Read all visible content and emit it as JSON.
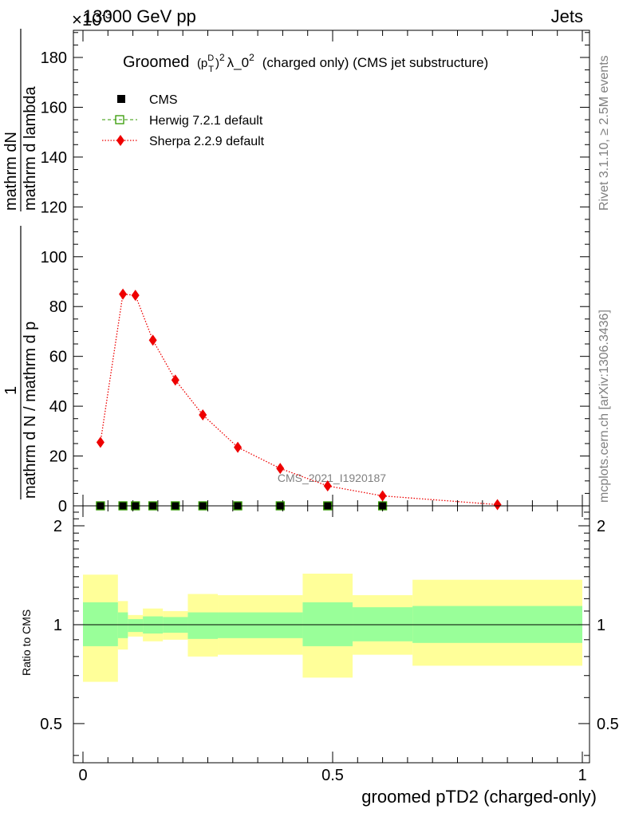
{
  "header": {
    "exponent_prefix": "×10",
    "exponent_sup": "-3",
    "energy_label": "13000 GeV pp",
    "category_label": "Jets"
  },
  "plot_title": {
    "main": "Groomed",
    "sub_sup": "D",
    "sub_sub": "T",
    "p": "(p",
    "close": ")",
    "sq": "2",
    "lam": "λ_0",
    "lam_sq": "2",
    "rest": "(charged only) (CMS jet substructure)"
  },
  "side_labels": {
    "rivet": "Rivet 3.1.10, ≥ 2.5M events",
    "mcplots": "mcplots.cern.ch [arXiv:1306.3436]",
    "watermark": "CMS_2021_I1920187"
  },
  "y_label_main": {
    "numer": "mathrm dN",
    "denom": "mathrm d p",
    "mid": "mathrm d lambda",
    "one": "1",
    "lower": "mathrm d N / mathrm d p",
    "lower_rest": "mathrm d p",
    "T": "T",
    "mathrm": "mathrm"
  },
  "y_label_ratio": "Ratio to CMS",
  "x_label": "groomed pTD2 (charged-only)",
  "legend": [
    {
      "name": "CMS",
      "color": "#000000",
      "marker": "filled-square"
    },
    {
      "name": "Herwig 7.2.1 default",
      "color": "#339900",
      "marker": "open-square",
      "line": "dashed"
    },
    {
      "name": "Sherpa 2.2.9 default",
      "color": "#ee0000",
      "marker": "filled-diamond",
      "line": "dotted"
    }
  ],
  "chart_data": [
    {
      "type": "line",
      "panel": "main",
      "xlim": [
        0,
        1
      ],
      "ylim": [
        0,
        190
      ],
      "y_scale_factor": "×10^-3",
      "y_ticks": [
        "0",
        "20",
        "40",
        "60",
        "80",
        "100",
        "120",
        "140",
        "160",
        "180"
      ],
      "series": [
        {
          "name": "CMS",
          "x": [
            0.035,
            0.08,
            0.105,
            0.14,
            0.185,
            0.24,
            0.31,
            0.395,
            0.49,
            0.6
          ],
          "y": [
            0,
            0,
            0,
            0,
            0,
            0,
            0,
            0,
            0,
            0
          ]
        },
        {
          "name": "Herwig 7.2.1 default",
          "x": [
            0.035,
            0.08,
            0.105,
            0.14,
            0.185,
            0.24,
            0.31,
            0.395,
            0.49,
            0.6
          ],
          "y": [
            0,
            0,
            0,
            0,
            0,
            0,
            0,
            0,
            0,
            0
          ]
        },
        {
          "name": "Sherpa 2.2.9 default",
          "x": [
            0.035,
            0.08,
            0.105,
            0.14,
            0.185,
            0.24,
            0.31,
            0.395,
            0.49,
            0.6,
            0.83
          ],
          "y": [
            25.5,
            85,
            84.5,
            66.5,
            50.5,
            36.5,
            23.5,
            15,
            8,
            4,
            0.5
          ]
        }
      ]
    },
    {
      "type": "area",
      "panel": "ratio",
      "xlim": [
        0,
        1
      ],
      "ylim": [
        0.38,
        2.3
      ],
      "y_scale": "log",
      "y_ticks": [
        "0.5",
        "1",
        "2"
      ],
      "x_ticks": [
        "0",
        "0.5",
        "1"
      ],
      "reference": 1,
      "bins": [
        {
          "lo": 0.0,
          "hi": 0.07,
          "stat_lo": 0.86,
          "stat_hi": 1.17,
          "tot_lo": 0.67,
          "tot_hi": 1.42
        },
        {
          "lo": 0.07,
          "hi": 0.09,
          "stat_lo": 0.91,
          "stat_hi": 1.09,
          "tot_lo": 0.84,
          "tot_hi": 1.18
        },
        {
          "lo": 0.09,
          "hi": 0.12,
          "stat_lo": 0.95,
          "stat_hi": 1.04,
          "tot_lo": 0.92,
          "tot_hi": 1.07
        },
        {
          "lo": 0.12,
          "hi": 0.16,
          "stat_lo": 0.94,
          "stat_hi": 1.06,
          "tot_lo": 0.89,
          "tot_hi": 1.12
        },
        {
          "lo": 0.16,
          "hi": 0.21,
          "stat_lo": 0.945,
          "stat_hi": 1.055,
          "tot_lo": 0.9,
          "tot_hi": 1.1
        },
        {
          "lo": 0.21,
          "hi": 0.27,
          "stat_lo": 0.905,
          "stat_hi": 1.09,
          "tot_lo": 0.8,
          "tot_hi": 1.24
        },
        {
          "lo": 0.27,
          "hi": 0.44,
          "stat_lo": 0.91,
          "stat_hi": 1.09,
          "tot_lo": 0.81,
          "tot_hi": 1.23
        },
        {
          "lo": 0.44,
          "hi": 0.54,
          "stat_lo": 0.86,
          "stat_hi": 1.17,
          "tot_lo": 0.69,
          "tot_hi": 1.43
        },
        {
          "lo": 0.54,
          "hi": 0.66,
          "stat_lo": 0.89,
          "stat_hi": 1.13,
          "tot_lo": 0.81,
          "tot_hi": 1.23
        },
        {
          "lo": 0.66,
          "hi": 1.0,
          "stat_lo": 0.88,
          "stat_hi": 1.14,
          "tot_lo": 0.75,
          "tot_hi": 1.37
        }
      ]
    }
  ],
  "colors": {
    "stat_band": "#99ff99",
    "tot_band": "#ffff99",
    "herwig": "#339900",
    "sherpa": "#ee0000",
    "cms": "#000000",
    "side_text": "#808080"
  }
}
